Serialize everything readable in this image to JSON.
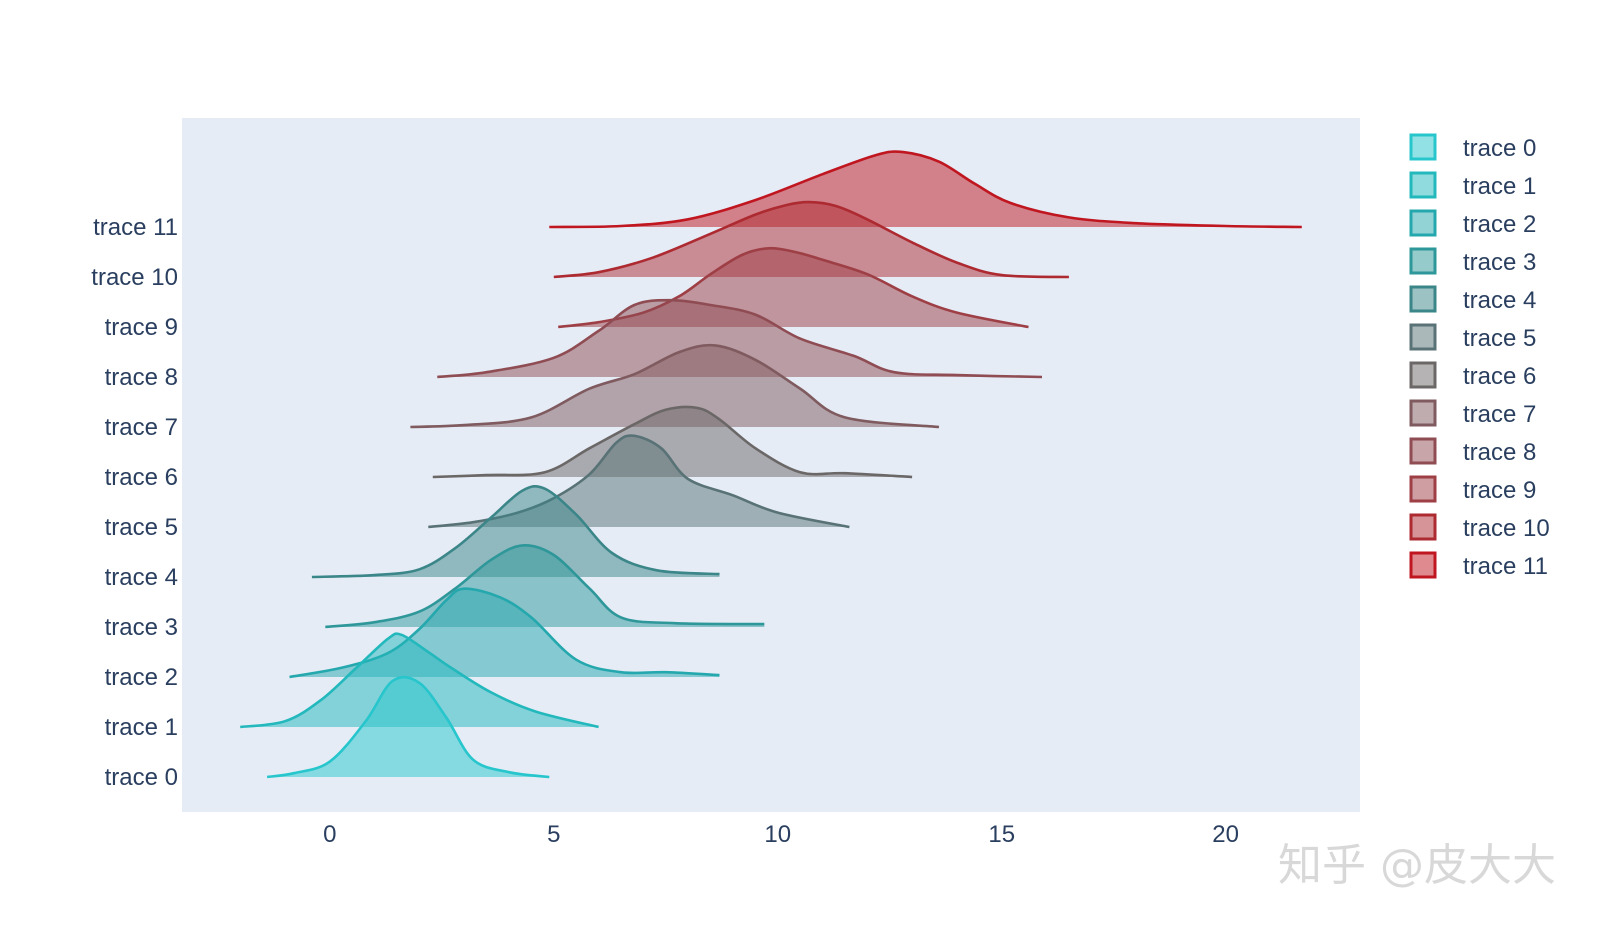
{
  "chart_data": {
    "type": "violin",
    "orientation": "horizontal",
    "side": "positive",
    "title": "",
    "xlabel": "",
    "ylabel": "",
    "xlim": [
      -3.3,
      23
    ],
    "xticks": [
      0,
      5,
      10,
      15,
      20
    ],
    "grid": false,
    "legend": "right",
    "series": [
      {
        "name": "trace 0",
        "color": "#26c6cc",
        "range": [
          -1.4,
          4.9
        ],
        "kde": [
          [
            -1.4,
            0.0
          ],
          [
            -0.8,
            0.04
          ],
          [
            0.0,
            0.16
          ],
          [
            0.8,
            0.58
          ],
          [
            1.4,
            1.0
          ],
          [
            2.0,
            0.98
          ],
          [
            2.6,
            0.62
          ],
          [
            3.2,
            0.18
          ],
          [
            4.0,
            0.05
          ],
          [
            4.9,
            0.0
          ]
        ]
      },
      {
        "name": "trace 1",
        "color": "#22b8bc",
        "range": [
          -2.0,
          6.0
        ],
        "kde": [
          [
            -2.0,
            0.0
          ],
          [
            -1.0,
            0.06
          ],
          [
            -0.2,
            0.28
          ],
          [
            0.6,
            0.62
          ],
          [
            1.3,
            0.92
          ],
          [
            1.6,
            0.96
          ],
          [
            2.2,
            0.78
          ],
          [
            2.7,
            0.62
          ],
          [
            3.6,
            0.36
          ],
          [
            4.6,
            0.16
          ],
          [
            6.0,
            0.0
          ]
        ]
      },
      {
        "name": "trace 2",
        "color": "#25a8ad",
        "range": [
          -0.9,
          8.7
        ],
        "kde": [
          [
            -0.9,
            0.0
          ],
          [
            0.3,
            0.1
          ],
          [
            1.3,
            0.25
          ],
          [
            2.0,
            0.5
          ],
          [
            2.6,
            0.8
          ],
          [
            3.0,
            0.92
          ],
          [
            3.8,
            0.83
          ],
          [
            4.5,
            0.62
          ],
          [
            5.5,
            0.18
          ],
          [
            6.5,
            0.05
          ],
          [
            7.5,
            0.05
          ],
          [
            8.7,
            0.02
          ]
        ]
      },
      {
        "name": "trace 3",
        "color": "#2e9799",
        "range": [
          -0.1,
          9.7
        ],
        "kde": [
          [
            -0.1,
            0.0
          ],
          [
            1.0,
            0.05
          ],
          [
            2.0,
            0.16
          ],
          [
            2.8,
            0.4
          ],
          [
            3.6,
            0.7
          ],
          [
            4.3,
            0.85
          ],
          [
            5.0,
            0.75
          ],
          [
            5.8,
            0.4
          ],
          [
            6.5,
            0.1
          ],
          [
            7.7,
            0.04
          ],
          [
            9.7,
            0.03
          ]
        ]
      },
      {
        "name": "trace 4",
        "color": "#3b8688",
        "range": [
          -0.4,
          8.7
        ],
        "kde": [
          [
            -0.4,
            0.0
          ],
          [
            1.0,
            0.02
          ],
          [
            2.0,
            0.08
          ],
          [
            2.8,
            0.3
          ],
          [
            3.6,
            0.62
          ],
          [
            4.3,
            0.9
          ],
          [
            4.8,
            0.92
          ],
          [
            5.5,
            0.65
          ],
          [
            6.3,
            0.25
          ],
          [
            7.3,
            0.07
          ],
          [
            8.7,
            0.03
          ]
        ]
      },
      {
        "name": "trace 5",
        "color": "#587276",
        "range": [
          2.2,
          11.6
        ],
        "kde": [
          [
            2.2,
            0.0
          ],
          [
            3.2,
            0.05
          ],
          [
            4.2,
            0.15
          ],
          [
            5.0,
            0.3
          ],
          [
            5.8,
            0.55
          ],
          [
            6.4,
            0.88
          ],
          [
            6.8,
            0.95
          ],
          [
            7.4,
            0.82
          ],
          [
            8.0,
            0.5
          ],
          [
            9.0,
            0.33
          ],
          [
            10.0,
            0.15
          ],
          [
            11.6,
            0.0
          ]
        ]
      },
      {
        "name": "trace 6",
        "color": "#6b6767",
        "range": [
          2.3,
          13.0
        ],
        "kde": [
          [
            2.3,
            0.0
          ],
          [
            3.5,
            0.02
          ],
          [
            4.8,
            0.05
          ],
          [
            5.8,
            0.3
          ],
          [
            6.8,
            0.55
          ],
          [
            7.5,
            0.7
          ],
          [
            8.2,
            0.72
          ],
          [
            8.7,
            0.6
          ],
          [
            9.5,
            0.3
          ],
          [
            10.5,
            0.05
          ],
          [
            11.5,
            0.04
          ],
          [
            13.0,
            0.0
          ]
        ]
      },
      {
        "name": "trace 7",
        "color": "#7f5a5e",
        "range": [
          1.8,
          13.6
        ],
        "kde": [
          [
            1.8,
            0.0
          ],
          [
            3.0,
            0.02
          ],
          [
            4.5,
            0.1
          ],
          [
            5.8,
            0.4
          ],
          [
            6.8,
            0.55
          ],
          [
            7.8,
            0.78
          ],
          [
            8.6,
            0.85
          ],
          [
            9.5,
            0.7
          ],
          [
            10.5,
            0.4
          ],
          [
            11.5,
            0.1
          ],
          [
            13.6,
            0.0
          ]
        ]
      },
      {
        "name": "trace 8",
        "color": "#8f4c53",
        "range": [
          2.4,
          15.9
        ],
        "kde": [
          [
            2.4,
            0.0
          ],
          [
            3.5,
            0.05
          ],
          [
            5.0,
            0.2
          ],
          [
            6.0,
            0.48
          ],
          [
            6.8,
            0.75
          ],
          [
            7.6,
            0.8
          ],
          [
            8.5,
            0.75
          ],
          [
            9.5,
            0.65
          ],
          [
            10.5,
            0.4
          ],
          [
            11.7,
            0.22
          ],
          [
            12.6,
            0.05
          ],
          [
            14.0,
            0.02
          ],
          [
            15.9,
            0.0
          ]
        ]
      },
      {
        "name": "trace 9",
        "color": "#9e3e45",
        "range": [
          5.1,
          15.6
        ],
        "kde": [
          [
            5.1,
            0.0
          ],
          [
            6.0,
            0.05
          ],
          [
            7.0,
            0.15
          ],
          [
            7.8,
            0.32
          ],
          [
            8.5,
            0.55
          ],
          [
            9.2,
            0.75
          ],
          [
            9.8,
            0.82
          ],
          [
            10.4,
            0.78
          ],
          [
            11.0,
            0.7
          ],
          [
            12.0,
            0.55
          ],
          [
            13.0,
            0.32
          ],
          [
            14.0,
            0.15
          ],
          [
            15.6,
            0.0
          ]
        ]
      },
      {
        "name": "trace 10",
        "color": "#ad2a31",
        "range": [
          5.0,
          16.5
        ],
        "kde": [
          [
            5.0,
            0.0
          ],
          [
            6.0,
            0.05
          ],
          [
            7.2,
            0.2
          ],
          [
            8.5,
            0.45
          ],
          [
            9.5,
            0.65
          ],
          [
            10.2,
            0.75
          ],
          [
            10.7,
            0.78
          ],
          [
            11.3,
            0.74
          ],
          [
            12.0,
            0.6
          ],
          [
            13.0,
            0.36
          ],
          [
            14.0,
            0.15
          ],
          [
            15.0,
            0.02
          ],
          [
            16.5,
            0.0
          ]
        ]
      },
      {
        "name": "trace 11",
        "color": "#c01620",
        "range": [
          4.9,
          21.7
        ],
        "kde": [
          [
            4.9,
            0.0
          ],
          [
            6.5,
            0.01
          ],
          [
            8.0,
            0.08
          ],
          [
            9.5,
            0.28
          ],
          [
            11.0,
            0.55
          ],
          [
            12.2,
            0.75
          ],
          [
            12.8,
            0.78
          ],
          [
            13.6,
            0.68
          ],
          [
            14.4,
            0.45
          ],
          [
            15.2,
            0.25
          ],
          [
            16.5,
            0.1
          ],
          [
            18.0,
            0.04
          ],
          [
            20.0,
            0.01
          ],
          [
            21.7,
            0.0
          ]
        ]
      }
    ]
  },
  "watermark": "知乎 @皮大大"
}
